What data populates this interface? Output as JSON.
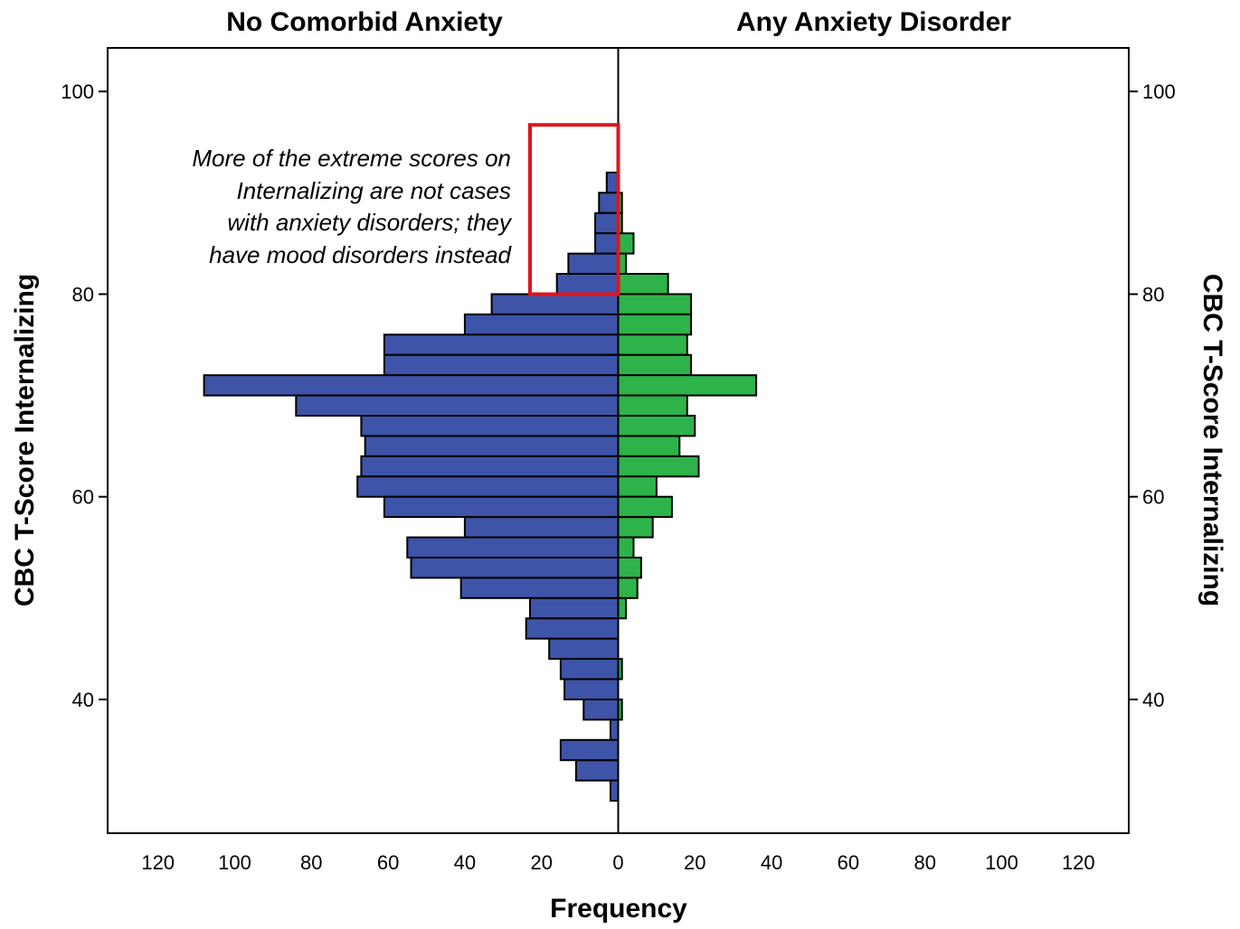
{
  "chart_data": {
    "type": "bar",
    "orientation": "horizontal-back-to-back",
    "panels": [
      "No Comorbid Anxiety",
      "Any Anxiety Disorder"
    ],
    "xlabel": "Frequency",
    "ylabel_left": "CBC T-Score Internalizing",
    "ylabel_right": "CBC T-Score Internalizing",
    "x_ticks_left": [
      "120",
      "100",
      "80",
      "60",
      "40",
      "20",
      "0"
    ],
    "x_ticks_right": [
      "20",
      "40",
      "60",
      "80",
      "100",
      "120"
    ],
    "y_ticks": [
      "100",
      "80",
      "60",
      "40"
    ],
    "xlim": [
      0,
      133
    ],
    "ylim": [
      26.8,
      104.3
    ],
    "bin_width": 2,
    "bin_starts": [
      92,
      90,
      88,
      86,
      84,
      82,
      80,
      78,
      76,
      74,
      72,
      70,
      68,
      66,
      64,
      62,
      60,
      58,
      56,
      54,
      52,
      50,
      48,
      46,
      44,
      42,
      40,
      38,
      36,
      34,
      32,
      30,
      28
    ],
    "grid": false,
    "colors": {
      "left_bar": "#3d54a8",
      "right_bar": "#2db34a",
      "highlight_box": "#e0141b",
      "frame": "#000000"
    },
    "series": [
      {
        "name": "No Comorbid Anxiety",
        "side": "left",
        "values": [
          0,
          3,
          5,
          6,
          6,
          13,
          16,
          33,
          40,
          61,
          61,
          108,
          84,
          67,
          66,
          67,
          68,
          61,
          40,
          55,
          54,
          41,
          23,
          24,
          18,
          15,
          14,
          9,
          2,
          15,
          11,
          2,
          0
        ]
      },
      {
        "name": "Any Anxiety Disorder",
        "side": "right",
        "values": [
          0,
          0,
          1,
          1,
          4,
          2,
          13,
          19,
          19,
          18,
          19,
          36,
          18,
          20,
          16,
          21,
          10,
          14,
          9,
          4,
          6,
          5,
          2,
          0,
          0,
          1,
          0,
          1,
          0,
          0,
          0,
          0,
          0
        ]
      }
    ],
    "annotation": {
      "lines": [
        "More of the extreme scores on",
        "Internalizing are not cases",
        "with anxiety disorders; they",
        "have mood disorders instead"
      ],
      "box_range": {
        "freq_left": [
          0,
          23
        ],
        "score": [
          80,
          96.7
        ]
      }
    }
  }
}
